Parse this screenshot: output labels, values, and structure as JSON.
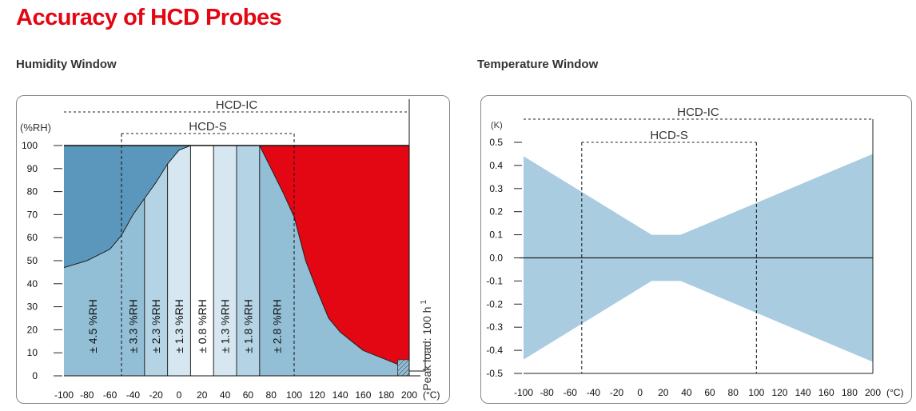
{
  "page": {
    "title": "Accuracy of HCD Probes",
    "humidity_title": "Humidity Window",
    "temperature_title": "Temperature Window"
  },
  "colors": {
    "title_red": "#e30613",
    "dark_blue": "#5b97bc",
    "mid_blue": "#93bfd6",
    "light_blue": "#b4d4e5",
    "lighter_blue": "#d6e7f1",
    "red_zone": "#e30613",
    "temp_band": "#a9cce0"
  },
  "chart_data": [
    {
      "type": "area",
      "name": "humidity",
      "title": "Humidity Window",
      "ylabel": "(%RH)",
      "xunit": "(°C)",
      "xlim": [
        -100,
        200
      ],
      "ylim": [
        0,
        100
      ],
      "xticks": [
        -100,
        -80,
        -60,
        -40,
        -20,
        0,
        20,
        40,
        60,
        80,
        100,
        120,
        140,
        160,
        180,
        200
      ],
      "xtick_labels": [
        "-100",
        "-80",
        "-60",
        "-40",
        "-20",
        "0",
        "20",
        "40",
        "60",
        "80",
        "100",
        "120",
        "140",
        "160",
        "180",
        "200"
      ],
      "yticks": [
        0,
        10,
        20,
        30,
        40,
        50,
        60,
        70,
        80,
        90,
        100
      ],
      "ytick_labels": [
        "0",
        "10",
        "20",
        "30",
        "40",
        "50",
        "60",
        "70",
        "80",
        "90",
        "100"
      ],
      "ranges": [
        {
          "label": "HCD-IC",
          "from": -100,
          "to": 200
        },
        {
          "label": "HCD-S",
          "from": -50,
          "to": 100
        }
      ],
      "dew_boundary": [
        [
          -100,
          47
        ],
        [
          -80,
          50
        ],
        [
          -60,
          55
        ],
        [
          -50,
          61
        ],
        [
          -40,
          70
        ],
        [
          -30,
          77
        ],
        [
          -20,
          84
        ],
        [
          -10,
          92
        ],
        [
          0,
          98
        ],
        [
          10,
          100
        ]
      ],
      "high_temp_boundary": [
        [
          70,
          100
        ],
        [
          80,
          90
        ],
        [
          90,
          80
        ],
        [
          100,
          69
        ],
        [
          110,
          50
        ],
        [
          120,
          37
        ],
        [
          130,
          25
        ],
        [
          140,
          19
        ],
        [
          150,
          15
        ],
        [
          160,
          11
        ],
        [
          170,
          9
        ],
        [
          180,
          7
        ],
        [
          190,
          5
        ],
        [
          200,
          5
        ]
      ],
      "bands": [
        {
          "from": -100,
          "to": -50,
          "label": "± 4.5 %RH",
          "shade": "mid"
        },
        {
          "from": -50,
          "to": -30,
          "label": "± 3.3 %RH",
          "shade": "mid"
        },
        {
          "from": -30,
          "to": -10,
          "label": "± 2.3 %RH",
          "shade": "light"
        },
        {
          "from": -10,
          "to": 10,
          "label": "± 1.3 %RH",
          "shade": "lighter"
        },
        {
          "from": 10,
          "to": 30,
          "label": "± 0.8 %RH",
          "shade": "white"
        },
        {
          "from": 30,
          "to": 50,
          "label": "± 1.3 %RH",
          "shade": "lighter"
        },
        {
          "from": 50,
          "to": 70,
          "label": "± 1.8 %RH",
          "shade": "light"
        },
        {
          "from": 70,
          "to": 100,
          "label": "± 2.8 %RH",
          "shade": "mid"
        },
        {
          "from": 100,
          "to": 200,
          "label": "",
          "shade": "mid"
        }
      ],
      "peak_load_label": "Peak load: 100 h",
      "peak_load_sup": "1"
    },
    {
      "type": "area",
      "name": "temperature",
      "title": "Temperature Window",
      "ylabel": "(K)",
      "xunit": "(°C)",
      "xlim": [
        -100,
        200
      ],
      "ylim": [
        -0.5,
        0.5
      ],
      "xticks": [
        -100,
        -80,
        -60,
        -40,
        -20,
        0,
        20,
        40,
        60,
        80,
        100,
        120,
        140,
        160,
        180,
        200
      ],
      "xtick_labels": [
        "-100",
        "-80",
        "-60",
        "-40",
        "-20",
        "0",
        "20",
        "40",
        "60",
        "80",
        "100",
        "120",
        "140",
        "160",
        "180",
        "200"
      ],
      "yticks": [
        0.5,
        0.4,
        0.3,
        0.2,
        0.1,
        0.0,
        -0.1,
        -0.2,
        -0.3,
        -0.4,
        -0.5
      ],
      "ytick_labels": [
        "0.5",
        "0.4",
        "0.3",
        "0.2",
        "0.1",
        "0.0",
        "-0.1",
        "-0.2",
        "-0.3",
        "-0.4",
        "-0.5"
      ],
      "ranges": [
        {
          "label": "HCD-IC",
          "from": -100,
          "to": 200
        },
        {
          "label": "HCD-S",
          "from": -50,
          "to": 100
        }
      ],
      "tolerance_band": [
        {
          "x": -100,
          "y": 0.44
        },
        {
          "x": 10,
          "y": 0.1
        },
        {
          "x": 35,
          "y": 0.1
        },
        {
          "x": 200,
          "y": 0.45
        }
      ]
    }
  ]
}
